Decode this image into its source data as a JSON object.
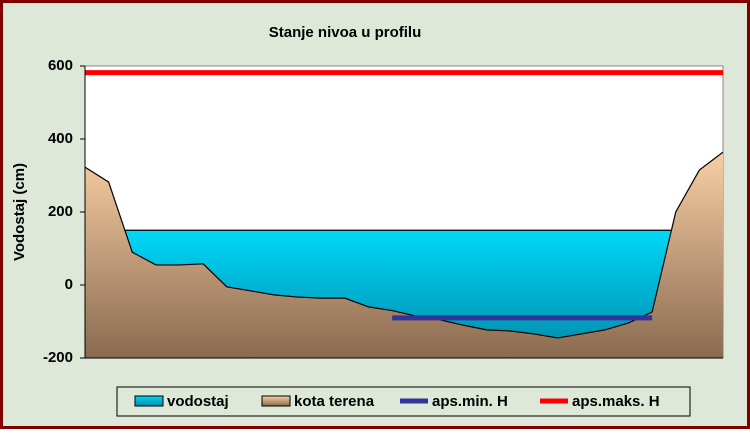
{
  "chart_data": {
    "type": "area",
    "title": "Stanje nivoa u profilu",
    "y_label": "Vodostaj (cm)",
    "categories": [
      null,
      null,
      null,
      null,
      null,
      null,
      null,
      null,
      null,
      null,
      null,
      null,
      null,
      null,
      null,
      null,
      null,
      null,
      null,
      null,
      null,
      null,
      null,
      null,
      null,
      null,
      null,
      null
    ],
    "ylim": [
      -200,
      600
    ],
    "yticks": [
      -200,
      0,
      200,
      400,
      600
    ],
    "grid": false,
    "legend": "bottom",
    "series": [
      {
        "name": "vodostaj",
        "type": "area",
        "color": "#00c8e8",
        "values": [
          150,
          150,
          150,
          150,
          150,
          150,
          150,
          150,
          150,
          150,
          150,
          150,
          150,
          150,
          150,
          150,
          150,
          150,
          150,
          150,
          150,
          150,
          150,
          150,
          150,
          150,
          150,
          150
        ]
      },
      {
        "name": "kota terena",
        "type": "area",
        "color": "#e8b888",
        "values": [
          323,
          282,
          90,
          55,
          55,
          58,
          -5,
          -16,
          -27,
          -33,
          -36,
          -36,
          -60,
          -70,
          -85,
          -95,
          -110,
          -123,
          -126,
          -134,
          -145,
          -134,
          -123,
          -104,
          -74,
          200,
          315,
          364
        ]
      },
      {
        "name": "aps.min. H",
        "type": "line",
        "color": "#333399",
        "values": [
          null,
          null,
          null,
          null,
          null,
          null,
          null,
          null,
          null,
          null,
          null,
          null,
          null,
          -90,
          -90,
          -90,
          -90,
          -90,
          -90,
          -90,
          -90,
          -90,
          -90,
          -90,
          -90,
          null,
          null,
          null
        ]
      },
      {
        "name": "aps.maks. H",
        "type": "line",
        "color": "#ff0000",
        "values": [
          582,
          582,
          582,
          582,
          582,
          582,
          582,
          582,
          582,
          582,
          582,
          582,
          582,
          582,
          582,
          582,
          582,
          582,
          582,
          582,
          582,
          582,
          582,
          582,
          582,
          582,
          582,
          582
        ]
      }
    ]
  }
}
